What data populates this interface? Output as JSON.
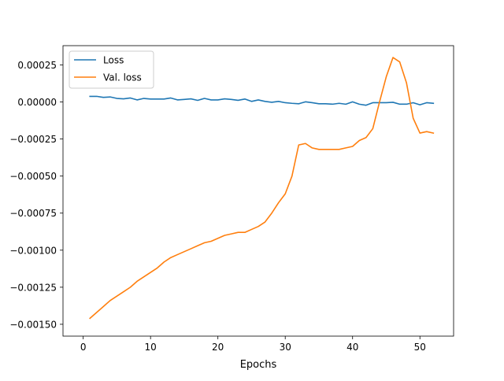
{
  "chart_data": {
    "type": "line",
    "title": "",
    "xlabel": "Epochs",
    "ylabel": "",
    "xlim": [
      -3,
      55
    ],
    "ylim": [
      -0.00158,
      0.00038
    ],
    "grid": false,
    "legend_position": "top-left",
    "x_ticks": [
      0,
      10,
      20,
      30,
      40,
      50
    ],
    "x_tick_labels": [
      "0",
      "10",
      "20",
      "30",
      "40",
      "50"
    ],
    "y_ticks": [
      0.00025,
      0.0,
      -0.00025,
      -0.0005,
      -0.00075,
      -0.001,
      -0.00125,
      -0.0015
    ],
    "y_tick_labels": [
      "0.00025",
      "0.00000",
      "−0.00025",
      "−0.00050",
      "−0.00075",
      "−0.00100",
      "−0.00125",
      "−0.00150"
    ],
    "x": [
      1,
      2,
      3,
      4,
      5,
      6,
      7,
      8,
      9,
      10,
      11,
      12,
      13,
      14,
      15,
      16,
      17,
      18,
      19,
      20,
      21,
      22,
      23,
      24,
      25,
      26,
      27,
      28,
      29,
      30,
      31,
      32,
      33,
      34,
      35,
      36,
      37,
      38,
      39,
      40,
      41,
      42,
      43,
      44,
      45,
      46,
      47,
      48,
      49,
      50,
      51,
      52
    ],
    "series": [
      {
        "name": "Loss",
        "color": "#1f77b4",
        "values": [
          3.8e-05,
          3.8e-05,
          3.1e-05,
          3.4e-05,
          2.4e-05,
          2.1e-05,
          2.7e-05,
          1.4e-05,
          2.4e-05,
          2e-05,
          2e-05,
          2e-05,
          2.7e-05,
          1.4e-05,
          1.7e-05,
          2.1e-05,
          1.1e-05,
          2.4e-05,
          1.4e-05,
          1.4e-05,
          2.1e-05,
          1.7e-05,
          1.1e-05,
          2e-05,
          4e-06,
          1.4e-05,
          4e-06,
          -2e-06,
          4e-06,
          -5e-06,
          -9e-06,
          -1.2e-05,
          1e-06,
          -5e-06,
          -1.2e-05,
          -1.2e-05,
          -1.5e-05,
          -9e-06,
          -1.5e-05,
          1e-06,
          -1.5e-05,
          -2.2e-05,
          -5e-06,
          -5e-06,
          -5e-06,
          -2e-06,
          -1.5e-05,
          -1.5e-05,
          -5e-06,
          -1.9e-05,
          -5e-06,
          -9e-06
        ]
      },
      {
        "name": "Val. loss",
        "color": "#ff7f0e",
        "values": [
          -0.00146,
          -0.00142,
          -0.00138,
          -0.00134,
          -0.00131,
          -0.00128,
          -0.00125,
          -0.00121,
          -0.00118,
          -0.00115,
          -0.00112,
          -0.00108,
          -0.00105,
          -0.00103,
          -0.00101,
          -0.00099,
          -0.00097,
          -0.00095,
          -0.00094,
          -0.00092,
          -0.0009,
          -0.00089,
          -0.00088,
          -0.00088,
          -0.00086,
          -0.00084,
          -0.00081,
          -0.00075,
          -0.00068,
          -0.00062,
          -0.0005,
          -0.00029,
          -0.00028,
          -0.00031,
          -0.00032,
          -0.00032,
          -0.00032,
          -0.00032,
          -0.00031,
          -0.0003,
          -0.00026,
          -0.00024,
          -0.00018,
          0.0,
          0.00017,
          0.0003,
          0.00027,
          0.00013,
          -0.00011,
          -0.00021,
          -0.0002,
          -0.00021
        ]
      }
    ]
  }
}
